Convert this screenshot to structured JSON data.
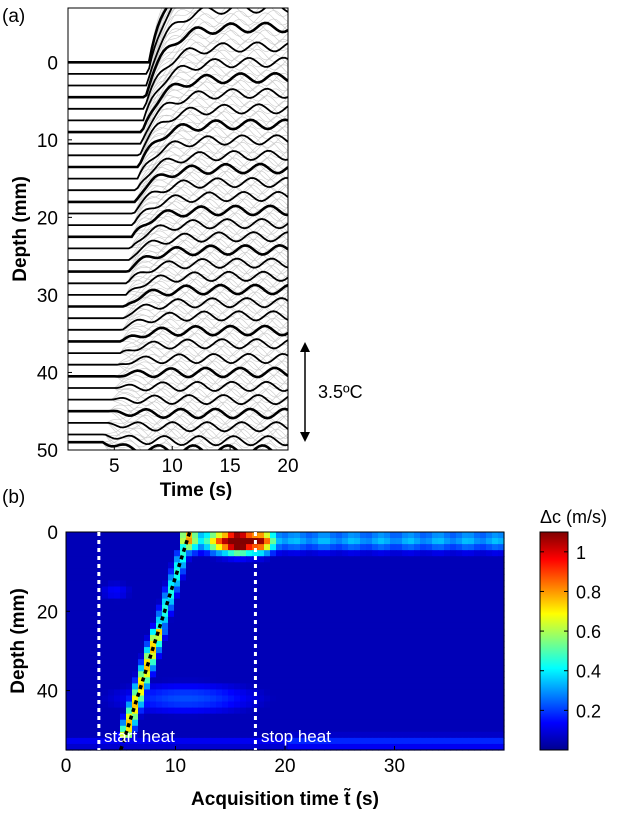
{
  "panel_a": {
    "label": "(a)",
    "scale_bar_label": "3.5ºC"
  },
  "panel_b": {
    "label": "(b)",
    "colorbar_title": "Δc (m/s)",
    "colorbar_ticks": [
      "0.2",
      "0.4",
      "0.6",
      "0.8",
      "1"
    ],
    "annotations": [
      "start heat",
      "stop heat"
    ]
  },
  "colors": {
    "trace_dark": "#000000",
    "trace_light": "#c8c8c8",
    "marker_white": "#ffffff",
    "marker_black": "#000000"
  },
  "chart_data": [
    {
      "type": "line",
      "xlabel": "Time (s)",
      "ylabel": "Depth (mm)",
      "xlim": [
        1,
        20
      ],
      "ylim": [
        50,
        -7
      ],
      "x_ticks": [
        "5",
        "10",
        "15",
        "20"
      ],
      "y_ticks": [
        "0",
        "10",
        "20",
        "30",
        "40",
        "50"
      ],
      "scale_bar_celsius": 3.5,
      "series": [
        {
          "depth": 0,
          "onset": 8.0,
          "rise": 12
        },
        {
          "depth": 1.5,
          "onset": 7.9,
          "rise": 11.5
        },
        {
          "depth": 3,
          "onset": 7.8,
          "rise": 10
        },
        {
          "depth": 4.5,
          "onset": 7.7,
          "rise": 9
        },
        {
          "depth": 6,
          "onset": 7.6,
          "rise": 8
        },
        {
          "depth": 7.5,
          "onset": 7.5,
          "rise": 7.5
        },
        {
          "depth": 9,
          "onset": 7.4,
          "rise": 7
        },
        {
          "depth": 10.5,
          "onset": 7.3,
          "rise": 6.5
        },
        {
          "depth": 12,
          "onset": 7.2,
          "rise": 6
        },
        {
          "depth": 13.5,
          "onset": 7.1,
          "rise": 5.5
        },
        {
          "depth": 15,
          "onset": 7.0,
          "rise": 5
        },
        {
          "depth": 16.5,
          "onset": 6.9,
          "rise": 4.5
        },
        {
          "depth": 18,
          "onset": 6.8,
          "rise": 4.3
        },
        {
          "depth": 19.5,
          "onset": 6.7,
          "rise": 4
        },
        {
          "depth": 21,
          "onset": 6.6,
          "rise": 3.7
        },
        {
          "depth": 22.5,
          "onset": 6.5,
          "rise": 3.4
        },
        {
          "depth": 24,
          "onset": 6.4,
          "rise": 3.2
        },
        {
          "depth": 25.5,
          "onset": 6.3,
          "rise": 3
        },
        {
          "depth": 27,
          "onset": 6.2,
          "rise": 2.8
        },
        {
          "depth": 28.5,
          "onset": 6.1,
          "rise": 2.6
        },
        {
          "depth": 30,
          "onset": 6.0,
          "rise": 2.4
        },
        {
          "depth": 31.5,
          "onset": 5.9,
          "rise": 2.2
        },
        {
          "depth": 33,
          "onset": 5.8,
          "rise": 2
        },
        {
          "depth": 34.5,
          "onset": 5.7,
          "rise": 1.8
        },
        {
          "depth": 36,
          "onset": 5.6,
          "rise": 1.4
        },
        {
          "depth": 37.5,
          "onset": 5.5,
          "rise": 1.2
        },
        {
          "depth": 39,
          "onset": 5.3,
          "rise": 0.8
        },
        {
          "depth": 40.5,
          "onset": 5.2,
          "rise": 0.5
        },
        {
          "depth": 42,
          "onset": 5.0,
          "rise": 0.2
        },
        {
          "depth": 43.5,
          "onset": 4.8,
          "rise": 0
        },
        {
          "depth": 45,
          "onset": 4.6,
          "rise": -0.3
        },
        {
          "depth": 46.5,
          "onset": 4.4,
          "rise": -0.5
        },
        {
          "depth": 48,
          "onset": 4.2,
          "rise": -0.8
        },
        {
          "depth": 49,
          "onset": 4.0,
          "rise": -1
        }
      ]
    },
    {
      "type": "heatmap",
      "xlabel": "Acquisition time t̃ (s)",
      "ylabel": "Depth (mm)",
      "xlim": [
        0,
        40
      ],
      "ylim": [
        55,
        0
      ],
      "x_ticks": [
        "0",
        "10",
        "20",
        "30"
      ],
      "y_ticks": [
        "0",
        "20",
        "40"
      ],
      "colorbar_range": [
        0,
        1.1
      ],
      "start_heat_time": 3,
      "stop_heat_time": 17.3,
      "heat_front_line": {
        "x": [
          5,
          11.3
        ],
        "y": [
          55,
          0
        ]
      }
    }
  ]
}
